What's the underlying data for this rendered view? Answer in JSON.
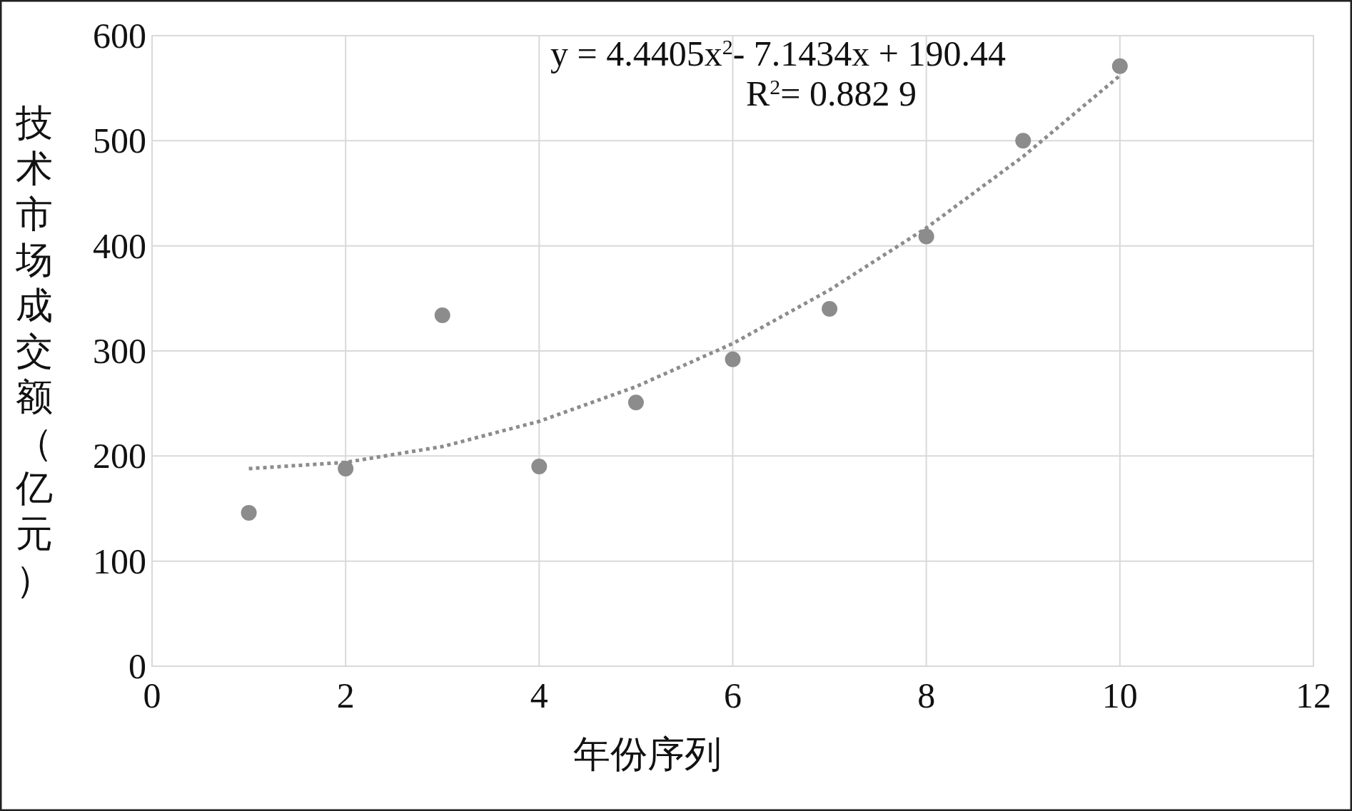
{
  "chart_data": {
    "type": "scatter",
    "xlabel": "年份序列",
    "ylabel": "技术市场成交额（亿元）",
    "xlim": [
      0,
      12
    ],
    "xticks": [
      0,
      2,
      4,
      6,
      8,
      10,
      12
    ],
    "ylim": [
      0,
      600
    ],
    "yticks": [
      0,
      100,
      200,
      300,
      400,
      500,
      600
    ],
    "grid": true,
    "marker": "circle",
    "series": [
      {
        "type": "scatter",
        "color": "#8c8c8c",
        "x": [
          1,
          2,
          3,
          4,
          5,
          6,
          7,
          8,
          9,
          10
        ],
        "values": [
          146,
          188,
          334,
          190,
          251,
          292,
          340,
          409,
          500,
          571
        ]
      },
      {
        "type": "line",
        "color": "#8c8c8c",
        "line_style": "dotted",
        "marker": "none",
        "x": [
          1,
          2,
          3,
          4,
          5,
          6,
          7,
          8,
          9,
          10
        ],
        "values": [
          188,
          194,
          209,
          233,
          266,
          307,
          358,
          417,
          485,
          562
        ]
      }
    ],
    "annotations": [
      "y = 4.4405x$^{2}$- 7.1434x + 190.44",
      "R$^{2}$= 0.882 9"
    ]
  }
}
